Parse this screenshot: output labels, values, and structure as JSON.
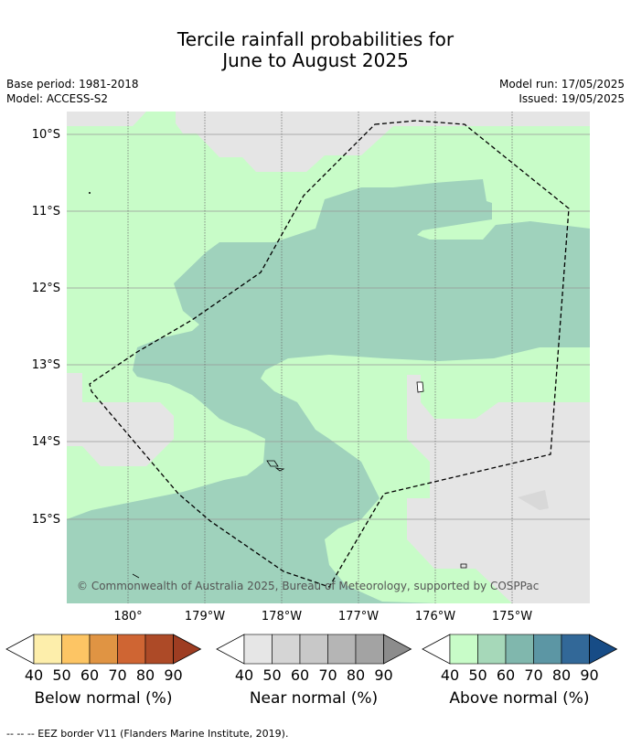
{
  "title_line1": "Tercile rainfall probabilities for",
  "title_line2": "June to August 2025",
  "base_period": "Base period: 1981-2018",
  "model": "Model: ACCESS-S2",
  "model_run": "Model run: 17/05/2025",
  "issued": "Issued: 19/05/2025",
  "map": {
    "lat_labels": [
      "10°S",
      "11°S",
      "12°S",
      "13°S",
      "14°S",
      "15°S"
    ],
    "lon_labels": [
      "180°",
      "179°W",
      "178°W",
      "177°W",
      "176°W",
      "175°W"
    ],
    "copyright": "© Commonwealth of Australia 2025, Bureau of Meteorology, supported by COSPPac",
    "colors": {
      "near_normal_40": "#e5e5e5",
      "above_normal_40": "#c8fcc8",
      "above_normal_50": "#9fd2bc"
    }
  },
  "colorbars": [
    {
      "label": "Below normal (%)",
      "ticks": [
        "40",
        "50",
        "60",
        "70",
        "80",
        "90"
      ],
      "colors": [
        "#fdeeab",
        "#fdc564",
        "#e09443",
        "#cf6533",
        "#ad4a27",
        "#9e3d22"
      ]
    },
    {
      "label": "Near normal (%)",
      "ticks": [
        "40",
        "50",
        "60",
        "70",
        "80",
        "90"
      ],
      "colors": [
        "#e6e6e6",
        "#d5d5d5",
        "#c8c8c8",
        "#b5b5b5",
        "#a3a3a3",
        "#8c8c8c"
      ]
    },
    {
      "label": "Above normal (%)",
      "ticks": [
        "40",
        "50",
        "60",
        "70",
        "80",
        "90"
      ],
      "colors": [
        "#c8fcc8",
        "#a6d8b9",
        "#80b7ad",
        "#5c96a4",
        "#326898",
        "#174c86"
      ]
    }
  ],
  "footer": "--  --  -- EEZ border V11 (Flanders Marine Institute, 2019)."
}
